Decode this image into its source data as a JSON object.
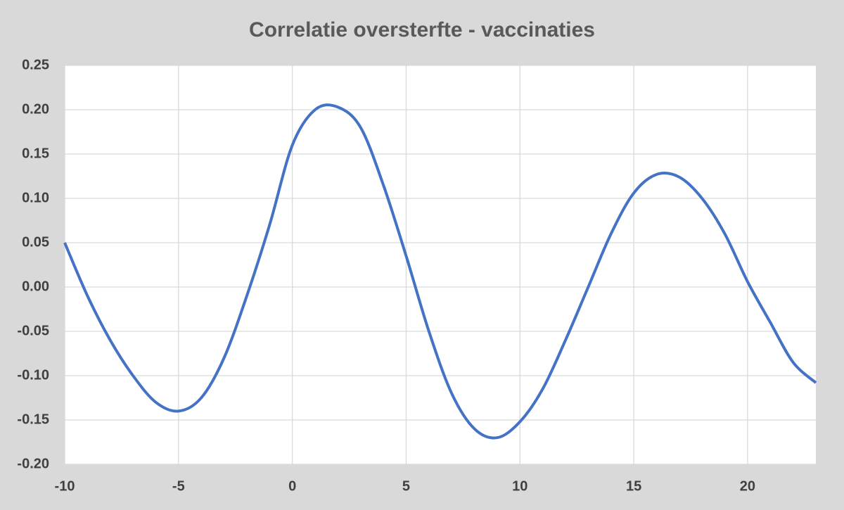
{
  "chart_data": {
    "type": "line",
    "title": "Correlatie oversterfte - vaccinaties",
    "x": [
      -10,
      -9,
      -8,
      -7,
      -6,
      -5,
      -4,
      -3,
      -2,
      -1,
      0,
      1,
      2,
      3,
      4,
      5,
      6,
      7,
      8,
      9,
      10,
      11,
      12,
      13,
      14,
      15,
      16,
      17,
      18,
      19,
      20,
      21,
      22,
      23
    ],
    "series": [
      {
        "color": "#4472c4",
        "values": [
          0.05,
          -0.01,
          -0.06,
          -0.1,
          -0.13,
          -0.14,
          -0.125,
          -0.08,
          -0.01,
          0.07,
          0.16,
          0.2,
          0.203,
          0.18,
          0.115,
          0.035,
          -0.05,
          -0.12,
          -0.16,
          -0.17,
          -0.152,
          -0.115,
          -0.06,
          0.0,
          0.06,
          0.106,
          0.127,
          0.124,
          0.1,
          0.06,
          0.006,
          -0.04,
          -0.085,
          -0.108
        ]
      }
    ],
    "xlim": [
      -10,
      23
    ],
    "xticks": [
      -10,
      -5,
      0,
      5,
      10,
      15,
      20
    ],
    "ylim": [
      -0.2,
      0.25
    ],
    "yticks": [
      {
        "value": -0.2,
        "label": "-0.20"
      },
      {
        "value": -0.15,
        "label": "-0.15"
      },
      {
        "value": -0.1,
        "label": "-0.10"
      },
      {
        "value": -0.05,
        "label": "-0.05"
      },
      {
        "value": 0,
        "label": "0.00"
      },
      {
        "value": 0.05,
        "label": "0.05"
      },
      {
        "value": 0.1,
        "label": "0.10"
      },
      {
        "value": 0.15,
        "label": "0.15"
      },
      {
        "value": 0.2,
        "label": "0.20"
      },
      {
        "value": 0.25,
        "label": "0.25"
      }
    ],
    "grid": true
  }
}
